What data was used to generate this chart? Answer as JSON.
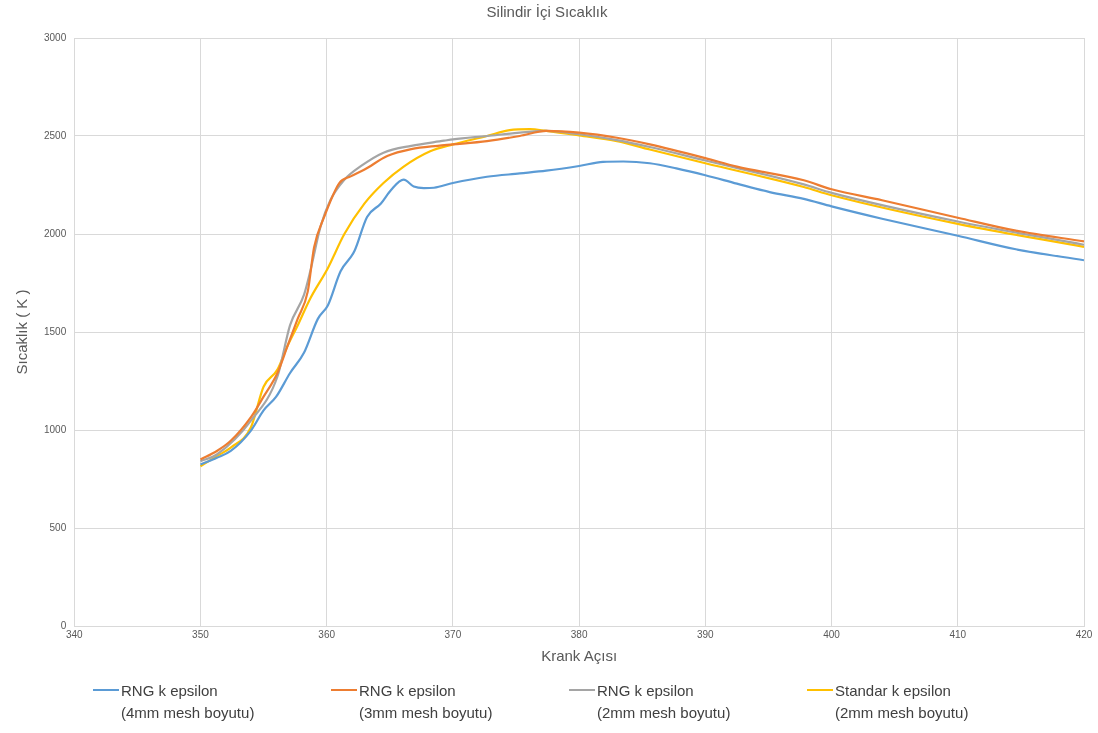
{
  "chart_data": {
    "type": "line",
    "title": "Silindir İçi Sıcaklık",
    "xlabel": "Krank Açısı",
    "ylabel": "Sıcaklık ( K )",
    "xlim": [
      340,
      420
    ],
    "xticks": [
      340,
      350,
      360,
      370,
      380,
      390,
      400,
      410,
      420
    ],
    "ylim": [
      0,
      3000
    ],
    "yticks": [
      0,
      500,
      1000,
      1500,
      2000,
      2500,
      3000
    ],
    "grid": true,
    "legend": "bottom",
    "marker": "none",
    "line_style": "solid",
    "series": [
      {
        "name": "RNG k epsilon (4mm mesh boyutu)",
        "color": "#5b9bd5",
        "x": [
          350,
          351.3,
          352.4,
          354,
          355,
          356,
          357.1,
          358.2,
          359.3,
          360.1,
          361.1,
          362.2,
          363.2,
          364.3,
          365.1,
          366.1,
          366.9,
          367.7,
          368.5,
          370,
          372.7,
          375.3,
          377.4,
          380,
          381.9,
          383.5,
          385.6,
          387.7,
          390,
          392.5,
          395.1,
          397.8,
          400,
          404,
          410,
          414.6,
          420
        ],
        "values": [
          824,
          858,
          893,
          997,
          1100,
          1170,
          1291,
          1394,
          1567,
          1637,
          1810,
          1913,
          2087,
          2156,
          2225,
          2277,
          2242,
          2234,
          2236,
          2260,
          2292,
          2309,
          2323,
          2347,
          2368,
          2370,
          2361,
          2335,
          2300,
          2257,
          2214,
          2179,
          2141,
          2078,
          1991,
          1922,
          1866
        ]
      },
      {
        "name": "RNG k epsilon (3mm mesh boyutu)",
        "color": "#ed7d31",
        "x": [
          350,
          351.3,
          352.4,
          354,
          355,
          356.1,
          356.9,
          357.7,
          358.5,
          359,
          359.8,
          361,
          361.9,
          363,
          364.8,
          366.7,
          368.8,
          370,
          372.7,
          375.3,
          377.4,
          380,
          383,
          385.6,
          390,
          392.5,
          397.8,
          400,
          404,
          410,
          414.6,
          420
        ],
        "values": [
          850,
          893,
          945,
          1066,
          1170,
          1291,
          1429,
          1567,
          1706,
          1931,
          2087,
          2260,
          2294,
          2329,
          2398,
          2433,
          2450,
          2457,
          2474,
          2500,
          2526,
          2517,
          2491,
          2457,
          2387,
          2344,
          2274,
          2228,
          2172,
          2083,
          2017,
          1962
        ]
      },
      {
        "name": "RNG k epsilon (2mm mesh boyutu)",
        "color": "#a5a5a5",
        "x": [
          350,
          351.3,
          354,
          356.1,
          357.1,
          358.2,
          358.7,
          359.5,
          360.3,
          361.4,
          362.7,
          364.5,
          366.7,
          369.3,
          370,
          372.7,
          375.3,
          377.4,
          380,
          383,
          385.6,
          390,
          397.8,
          400,
          410,
          420
        ],
        "values": [
          841,
          875,
          1048,
          1273,
          1535,
          1689,
          1810,
          2035,
          2173,
          2277,
          2346,
          2415,
          2450,
          2476,
          2483,
          2500,
          2517,
          2526,
          2509,
          2479,
          2444,
          2375,
          2253,
          2210,
          2064,
          1945
        ]
      },
      {
        "name": "Standar k epsilon (2mm mesh boyutu)",
        "color": "#ffc000",
        "x": [
          350,
          351.3,
          352.4,
          354,
          355,
          356.1,
          356.9,
          357.7,
          358.7,
          360.1,
          361.4,
          363,
          364.5,
          366.1,
          368.2,
          370,
          372.7,
          374.5,
          376.1,
          377.4,
          380,
          383,
          385.6,
          390,
          397.8,
          400,
          410,
          420
        ],
        "values": [
          815,
          867,
          910,
          1014,
          1221,
          1308,
          1429,
          1533,
          1671,
          1827,
          2000,
          2156,
          2260,
          2344,
          2422,
          2457,
          2500,
          2530,
          2535,
          2526,
          2503,
          2474,
          2431,
          2361,
          2240,
          2198,
          2052,
          1934
        ]
      }
    ]
  }
}
